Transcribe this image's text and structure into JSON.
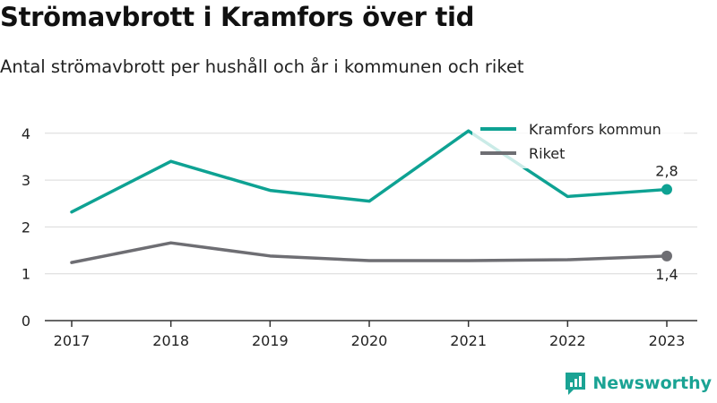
{
  "title": "Strömavbrott i Kramfors över tid",
  "subtitle": "Antal strömavbrott per hushåll och år i kommunen och riket",
  "brand": {
    "name": "Newsworthy",
    "icon": "newsworthy-logo-icon"
  },
  "colors": {
    "kramfors": "#0ea293",
    "riket": "#6e6e73",
    "grid": "#d9d9d9",
    "axis": "#333333"
  },
  "chart_data": {
    "type": "line",
    "categories": [
      "2017",
      "2018",
      "2019",
      "2020",
      "2021",
      "2022",
      "2023"
    ],
    "yticks": [
      "0",
      "1",
      "2",
      "3",
      "4"
    ],
    "ylim": [
      0,
      4.2
    ],
    "grid": true,
    "legend_position": "top-right",
    "series": [
      {
        "name": "Kramfors kommun",
        "values": [
          2.32,
          3.4,
          2.78,
          2.55,
          4.05,
          2.65,
          2.8
        ],
        "end_label": "2,8"
      },
      {
        "name": "Riket",
        "values": [
          1.24,
          1.66,
          1.38,
          1.28,
          1.28,
          1.3,
          1.38
        ],
        "end_label": "1,4"
      }
    ]
  }
}
